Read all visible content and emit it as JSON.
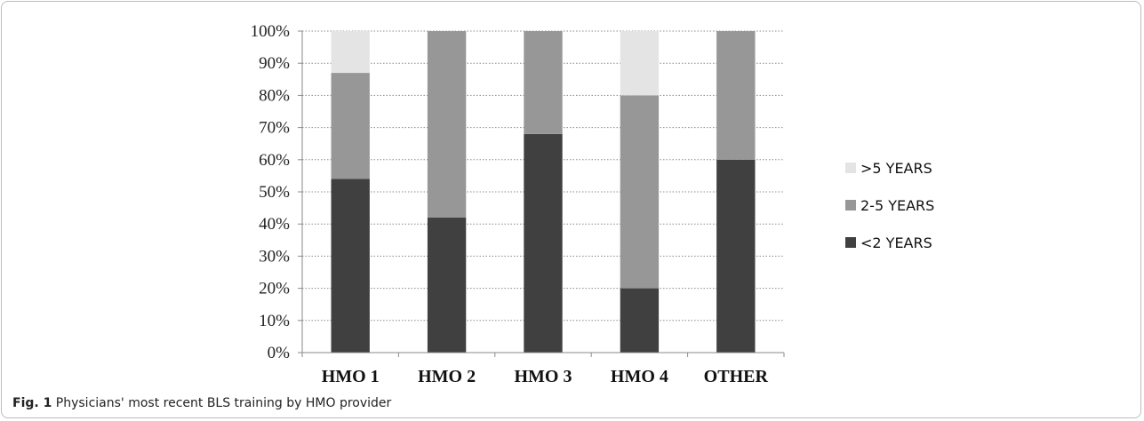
{
  "caption": {
    "prefix": "Fig. 1",
    "text": " Physicians' most recent BLS training by HMO provider"
  },
  "chart_data": {
    "type": "bar",
    "stacked": true,
    "categories": [
      "HMO 1",
      "HMO 2",
      "HMO 3",
      "HMO 4",
      "OTHER"
    ],
    "series": [
      {
        "name": "<2 YEARS",
        "values": [
          54,
          42,
          68,
          20,
          60
        ],
        "color": "#404040"
      },
      {
        "name": "2-5 YEARS",
        "values": [
          33,
          58,
          32,
          60,
          40
        ],
        "color": "#979797"
      },
      {
        "name": ">5 YEARS",
        "values": [
          13,
          0,
          0,
          20,
          0
        ],
        "color": "#e4e4e4"
      }
    ],
    "yticks": [
      "0%",
      "10%",
      "20%",
      "30%",
      "40%",
      "50%",
      "60%",
      "70%",
      "80%",
      "90%",
      "100%"
    ],
    "ylim": [
      0,
      100
    ],
    "grid": true,
    "legend_position": "right",
    "title": "",
    "xlabel": "",
    "ylabel": ""
  }
}
